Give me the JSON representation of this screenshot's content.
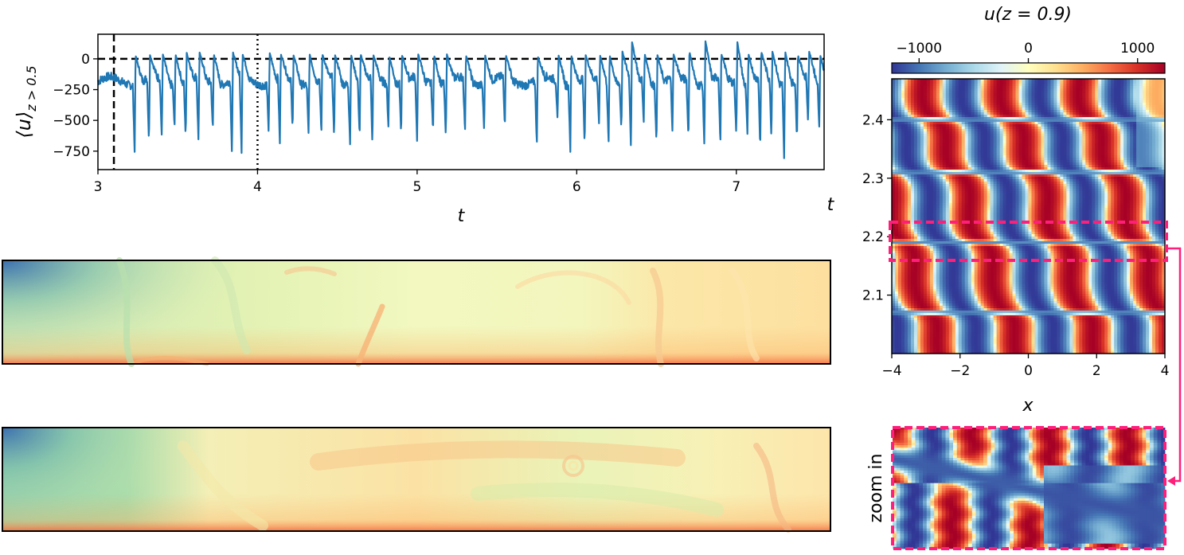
{
  "chart_data": [
    {
      "type": "line",
      "ylabel": "⟨u⟩",
      "ylabel_sub": "z > 0.5",
      "xlabel": "t",
      "xlim": [
        3.0,
        7.55
      ],
      "ylim": [
        -900,
        200
      ],
      "xticks": [
        3,
        4,
        5,
        6,
        7
      ],
      "yticks": [
        0,
        -250,
        -500,
        -750
      ],
      "ytick_labels": [
        "0",
        "−250",
        "−500",
        "−750"
      ],
      "line_color": "#1f77b4",
      "reference_lines": [
        {
          "type": "horizontal",
          "y": 0,
          "style": "dashed",
          "color": "#000000"
        },
        {
          "type": "vertical",
          "x": 3.1,
          "style": "dashed",
          "color": "#000000"
        },
        {
          "type": "vertical",
          "x": 4.0,
          "style": "dotted",
          "color": "#000000"
        }
      ],
      "series": [
        {
          "baseline_mean": -180,
          "x_spikes": [
            3.23,
            3.32,
            3.4,
            3.48,
            3.55,
            3.63,
            3.72,
            3.84,
            3.9,
            4.07,
            4.14,
            4.22,
            4.32,
            4.4,
            4.48,
            4.58,
            4.64,
            4.72,
            4.82,
            4.9,
            5.0,
            5.1,
            5.18,
            5.3,
            5.42,
            5.55,
            5.75,
            5.88,
            5.96,
            6.05,
            6.14,
            6.2,
            6.28,
            6.34,
            6.42,
            6.5,
            6.6,
            6.7,
            6.8,
            6.9,
            7.0,
            7.07,
            7.15,
            7.22,
            7.3,
            7.38,
            7.45,
            7.52
          ],
          "spike_min": [
            -760,
            -690,
            -640,
            -560,
            -640,
            -680,
            -580,
            -790,
            -770,
            -610,
            -690,
            -580,
            -620,
            -620,
            -650,
            -700,
            -640,
            -710,
            -550,
            -620,
            -690,
            -600,
            -640,
            -600,
            -590,
            -560,
            -700,
            -500,
            -760,
            -720,
            -540,
            -690,
            -580,
            -740,
            -520,
            -700,
            -600,
            -650,
            -720,
            -700,
            -620,
            -620,
            -740,
            -650,
            -820,
            -660,
            -530,
            -560
          ],
          "spike_max": [
            30,
            30,
            40,
            40,
            50,
            55,
            40,
            55,
            40,
            50,
            40,
            30,
            40,
            40,
            30,
            35,
            40,
            30,
            20,
            30,
            40,
            30,
            40,
            30,
            30,
            30,
            20,
            30,
            30,
            30,
            30,
            30,
            60,
            140,
            40,
            30,
            40,
            60,
            150,
            40,
            140,
            40,
            60,
            60,
            60,
            30,
            60,
            30
          ]
        }
      ]
    },
    {
      "type": "heatmap",
      "title": "u(z = 0.9)",
      "xlabel": "x",
      "ylabel": "t",
      "xlim": [
        -4,
        4
      ],
      "ylim": [
        2.0,
        2.47
      ],
      "xticks": [
        -4,
        -2,
        0,
        2,
        4
      ],
      "xtick_labels": [
        "−4",
        "−2",
        "0",
        "2",
        "4"
      ],
      "yticks": [
        2.1,
        2.2,
        2.3,
        2.4
      ],
      "ytick_labels": [
        "2.1",
        "2.2",
        "2.3",
        "2.4"
      ],
      "colorbar": {
        "orientation": "horizontal",
        "location": "top",
        "ticks": [
          -1000,
          0,
          1000
        ],
        "tick_labels": [
          "−1000",
          "0",
          "1000"
        ],
        "vmin": -1250,
        "vmax": 1250,
        "colors": [
          "#313695",
          "#4575b4",
          "#74add1",
          "#abd9e9",
          "#e0f3f8",
          "#ffffbf",
          "#fee090",
          "#fdae61",
          "#f46d43",
          "#d73027",
          "#a50026"
        ]
      },
      "highlight_box": {
        "t_range": [
          2.16,
          2.225
        ],
        "color": "#ff1f7a",
        "style": "dashed"
      },
      "reversals_t": [
        2.07,
        2.19,
        2.31,
        2.4
      ]
    },
    {
      "type": "heatmap",
      "annotation": "zoom in",
      "frame_color": "#ff1f7a"
    }
  ],
  "snapshots": [
    {
      "frame_color": "#000000"
    },
    {
      "frame_color": "#000000"
    }
  ]
}
